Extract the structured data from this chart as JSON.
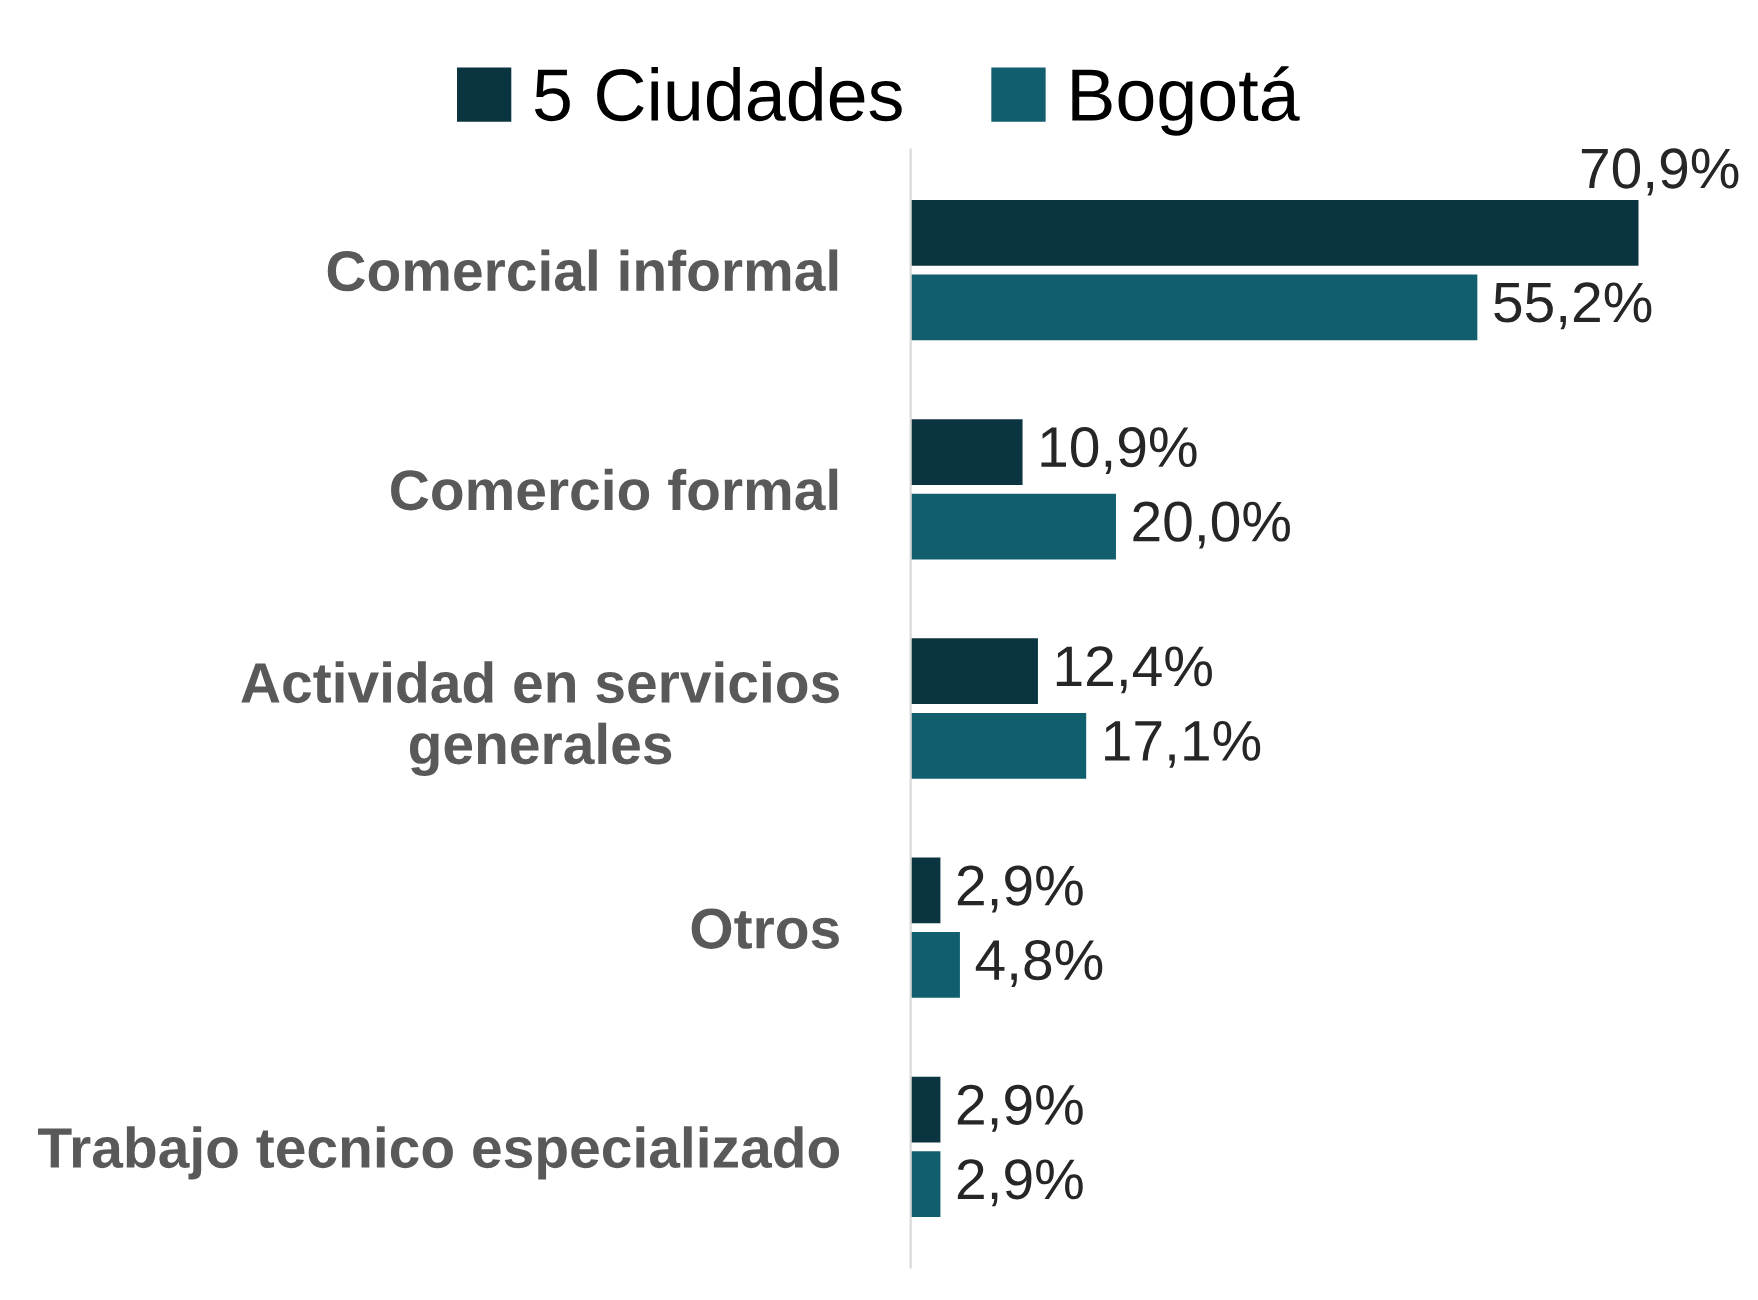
{
  "chart_data": {
    "type": "bar",
    "orientation": "horizontal",
    "legend": "top",
    "categories": [
      "Comercial informal",
      "Comercio formal",
      "Actividad en servicios generales",
      "Otros",
      "Trabajo tecnico especializado"
    ],
    "series": [
      {
        "name": "5 Ciudades",
        "color": "#0b3441",
        "values": [
          70.9,
          10.9,
          12.4,
          2.9,
          2.9
        ],
        "value_labels": [
          "70,9%",
          "10,9%",
          "12,4%",
          "2,9%",
          "2,9%"
        ]
      },
      {
        "name": "Bogotá",
        "color": "#115e6e",
        "values": [
          55.2,
          20.0,
          17.1,
          4.8,
          2.9
        ],
        "value_labels": [
          "55,2%",
          "20,0%",
          "17,1%",
          "4,8%",
          "2,9%"
        ]
      }
    ],
    "grid": false
  }
}
